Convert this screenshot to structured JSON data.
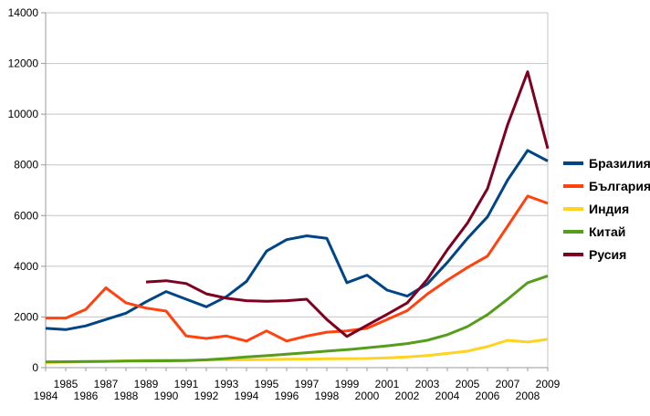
{
  "chart_data": {
    "type": "line",
    "title": "",
    "xlabel": "",
    "ylabel": "",
    "grid": true,
    "legend_position": "right",
    "ylim": [
      0,
      14000
    ],
    "y_ticks": [
      0,
      2000,
      4000,
      6000,
      8000,
      10000,
      12000,
      14000
    ],
    "x": [
      1984,
      1985,
      1986,
      1987,
      1988,
      1989,
      1990,
      1991,
      1992,
      1993,
      1994,
      1995,
      1996,
      1997,
      1998,
      1999,
      2000,
      2001,
      2002,
      2003,
      2004,
      2005,
      2006,
      2007,
      2008,
      2009
    ],
    "series": [
      {
        "name": "Бразилия",
        "color": "#004586",
        "values": [
          1550,
          1500,
          1650,
          1900,
          2150,
          2600,
          3000,
          2700,
          2400,
          2800,
          3400,
          4600,
          5050,
          5200,
          5100,
          3350,
          3650,
          3060,
          2820,
          3300,
          4150,
          5100,
          5950,
          7400,
          8570,
          8150
        ]
      },
      {
        "name": "България",
        "color": "#ff420e",
        "values": [
          1950,
          1950,
          2300,
          3150,
          2560,
          2350,
          2230,
          1250,
          1150,
          1250,
          1050,
          1450,
          1050,
          1250,
          1400,
          1450,
          1550,
          1900,
          2250,
          2900,
          3450,
          3950,
          4400,
          5580,
          6770,
          6480
        ]
      },
      {
        "name": "Индия",
        "color": "#ffd320",
        "values": [
          200,
          215,
          230,
          250,
          270,
          290,
          300,
          300,
          300,
          305,
          310,
          320,
          330,
          340,
          350,
          355,
          360,
          385,
          420,
          480,
          560,
          650,
          830,
          1080,
          1010,
          1120
        ]
      },
      {
        "name": "Китай",
        "color": "#579d1c",
        "values": [
          230,
          235,
          240,
          250,
          260,
          265,
          270,
          280,
          310,
          360,
          420,
          470,
          530,
          590,
          650,
          710,
          780,
          860,
          950,
          1080,
          1300,
          1620,
          2090,
          2700,
          3350,
          3620
        ]
      },
      {
        "name": "Русия",
        "color": "#7e0021",
        "values": [
          null,
          null,
          null,
          null,
          null,
          3380,
          3430,
          3320,
          2910,
          2740,
          2640,
          2620,
          2640,
          2700,
          1900,
          1230,
          1670,
          2100,
          2550,
          3480,
          4650,
          5700,
          7060,
          9580,
          11670,
          8640
        ]
      }
    ],
    "style": {
      "grid_color": "#c5c5c5",
      "axis_color": "#9a9a9a",
      "label_color": "#000000",
      "background": "#ffffff"
    }
  }
}
